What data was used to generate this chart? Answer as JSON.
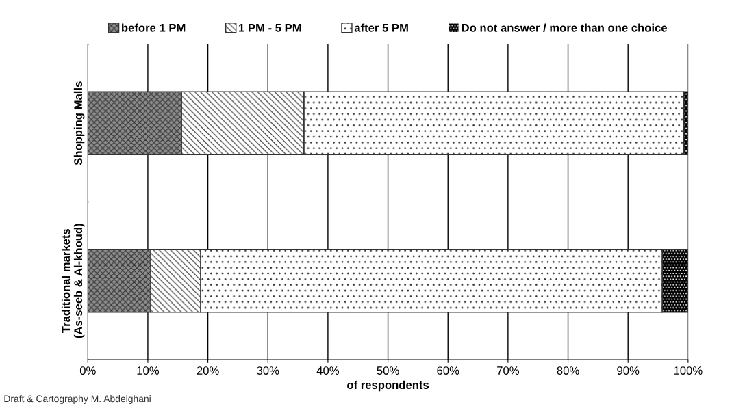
{
  "chart_data": {
    "type": "bar",
    "orientation": "horizontal",
    "stacked": true,
    "categories": [
      "Shopping Malls",
      "Traditional markets (As-seeb & Al-khoud)"
    ],
    "series": [
      {
        "name": "before 1 PM",
        "color": "#8c8c8c",
        "values": [
          15.6,
          10.5
        ]
      },
      {
        "name": "1 PM - 5 PM",
        "color": "#ffffff",
        "values": [
          20.4,
          8.3
        ]
      },
      {
        "name": "after 5 PM",
        "color": "#ffffff",
        "values": [
          63.3,
          76.9
        ]
      },
      {
        "name": "Do not answer / more than one choice",
        "color": "#000000",
        "values": [
          0.7,
          4.3
        ]
      }
    ],
    "xlim": [
      0,
      100
    ],
    "xticks": [
      {
        "value": 0,
        "label": "0%"
      },
      {
        "value": 10,
        "label": "10%"
      },
      {
        "value": 20,
        "label": "20%"
      },
      {
        "value": 30,
        "label": "30%"
      },
      {
        "value": 40,
        "label": "40%"
      },
      {
        "value": 50,
        "label": "50%"
      },
      {
        "value": 60,
        "label": "60%"
      },
      {
        "value": 70,
        "label": "70%"
      },
      {
        "value": 80,
        "label": "80%"
      },
      {
        "value": 90,
        "label": "90%"
      },
      {
        "value": 100,
        "label": "100%"
      }
    ],
    "xlabel": "of respondents",
    "grid": "x",
    "legend": "top",
    "annotations": [
      "Draft & Cartography M. Abdelghani"
    ]
  }
}
